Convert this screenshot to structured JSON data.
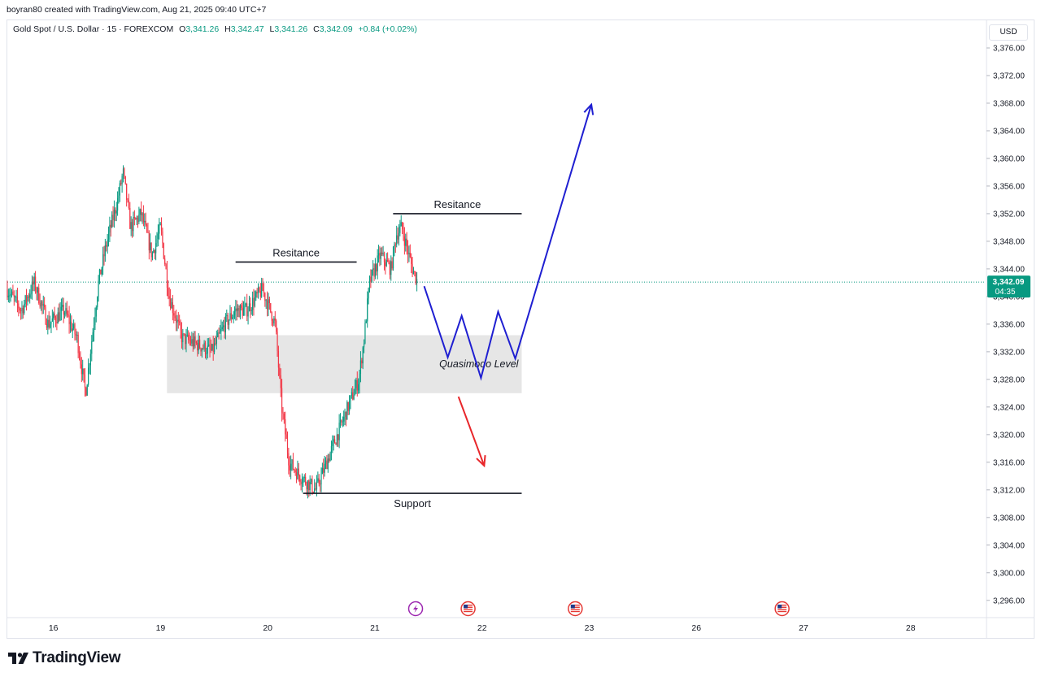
{
  "header": {
    "attribution": "boyran80 created with TradingView.com, Aug 21, 2025 09:40 UTC+7"
  },
  "legend": {
    "symbol": "Gold Spot / U.S. Dollar · 15 · FOREXCOM",
    "open_label": "O",
    "open": "3,341.26",
    "high_label": "H",
    "high": "3,342.47",
    "low_label": "L",
    "low": "3,341.26",
    "close_label": "C",
    "close": "3,342.09",
    "change": "+0.84 (+0.02%)"
  },
  "price_scale": {
    "currency": "USD",
    "current_price": "3,342.09",
    "countdown": "04:35"
  },
  "footer": {
    "brand": "TradingView",
    "logo_icon": "tradingview-logo-icon"
  },
  "event_icons": [
    "lightning-event-icon",
    "us-flag-event-icon",
    "us-flag-event-icon",
    "us-flag-event-icon"
  ],
  "colors": {
    "up": "#089981",
    "down": "#f23645",
    "projection": "#1f1fd1",
    "projection_down": "#e8262a",
    "zone": "#e6e6e6",
    "level_line": "#131722",
    "price_tag": "#089981"
  },
  "chart_data": {
    "type": "candlestick",
    "interval": "15",
    "ylim": [
      3293.5,
      3380.0
    ],
    "y_ticks": [
      3296,
      3300,
      3304,
      3308,
      3312,
      3316,
      3320,
      3324,
      3328,
      3332,
      3336,
      3340,
      3344,
      3348,
      3352,
      3356,
      3360,
      3364,
      3368,
      3372,
      3376
    ],
    "y_tick_labels": [
      "3,296.00",
      "3,300.00",
      "3,304.00",
      "3,308.00",
      "3,312.00",
      "3,316.00",
      "3,320.00",
      "3,324.00",
      "3,328.00",
      "3,332.00",
      "3,336.00",
      "3,340.00",
      "3,344.00",
      "3,348.00",
      "3,352.00",
      "3,356.00",
      "3,360.00",
      "3,364.00",
      "3,368.00",
      "3,372.00",
      "3,376.00"
    ],
    "x_labels": [
      "16",
      "19",
      "20",
      "21",
      "22",
      "23",
      "26",
      "27",
      "28"
    ],
    "x_label_days": [
      0,
      1,
      2,
      3,
      4,
      5,
      6,
      7,
      8
    ],
    "day_range": [
      -0.43,
      8.7
    ],
    "price_path": [
      [
        -0.43,
        3341
      ],
      [
        -0.3,
        3338
      ],
      [
        -0.18,
        3342
      ],
      [
        -0.05,
        3336
      ],
      [
        0.1,
        3338
      ],
      [
        0.22,
        3334
      ],
      [
        0.3,
        3326
      ],
      [
        0.36,
        3334
      ],
      [
        0.42,
        3342
      ],
      [
        0.5,
        3348
      ],
      [
        0.6,
        3354
      ],
      [
        0.65,
        3358
      ],
      [
        0.72,
        3350
      ],
      [
        0.82,
        3352
      ],
      [
        0.92,
        3346
      ],
      [
        1.0,
        3350
      ],
      [
        1.08,
        3340
      ],
      [
        1.2,
        3334
      ],
      [
        1.35,
        3333
      ],
      [
        1.48,
        3332
      ],
      [
        1.6,
        3336
      ],
      [
        1.7,
        3338
      ],
      [
        1.8,
        3338
      ],
      [
        1.95,
        3341
      ],
      [
        2.0,
        3339
      ],
      [
        2.07,
        3336
      ],
      [
        2.13,
        3324
      ],
      [
        2.2,
        3316
      ],
      [
        2.3,
        3314
      ],
      [
        2.45,
        3312
      ],
      [
        2.6,
        3318
      ],
      [
        2.75,
        3324
      ],
      [
        2.85,
        3328
      ],
      [
        2.9,
        3334
      ],
      [
        2.95,
        3342
      ],
      [
        3.05,
        3346
      ],
      [
        3.15,
        3344
      ],
      [
        3.2,
        3349
      ],
      [
        3.25,
        3350
      ],
      [
        3.35,
        3344
      ],
      [
        3.4,
        3342.09
      ]
    ],
    "levels": [
      {
        "label": "Resitance",
        "price": 3345.0,
        "day_from": 1.7,
        "day_to": 2.83
      },
      {
        "label": "Resitance",
        "price": 3352.0,
        "day_from": 3.17,
        "day_to": 4.37
      },
      {
        "label": "Support",
        "price": 3311.5,
        "day_from": 2.33,
        "day_to": 4.37
      }
    ],
    "zones": [
      {
        "label": "Quasimodo Level",
        "price_from": 3334.4,
        "price_to": 3326.0,
        "day_from": 1.06,
        "day_to": 4.37
      }
    ],
    "projection_path": [
      [
        3.46,
        3341.5
      ],
      [
        3.68,
        3331.2
      ],
      [
        3.81,
        3337.2
      ],
      [
        3.99,
        3328.2
      ],
      [
        4.15,
        3337.8
      ],
      [
        4.31,
        3331.0
      ],
      [
        5.02,
        3367.8
      ]
    ],
    "alternate_path": [
      [
        3.78,
        3325.5
      ],
      [
        4.02,
        3315.5
      ]
    ],
    "events_days": [
      3.38,
      3.87,
      4.87,
      6.8
    ]
  }
}
